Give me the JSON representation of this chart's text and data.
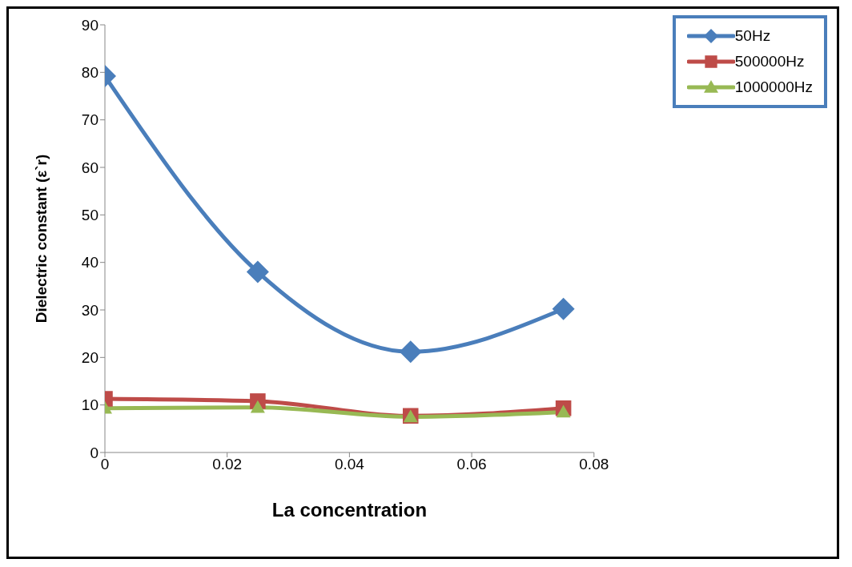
{
  "chart_data": {
    "type": "line",
    "xlabel": "La concentration",
    "ylabel": "Dielectric constant (ε`r)",
    "x": [
      0,
      0.025,
      0.05,
      0.075
    ],
    "series": [
      {
        "name": "50Hz",
        "color": "#4a7ebb",
        "marker": "diamond",
        "values": [
          79.2,
          38,
          21.2,
          30.2
        ]
      },
      {
        "name": "500000Hz",
        "color": "#be4b48",
        "marker": "square",
        "values": [
          11.3,
          10.8,
          7.7,
          9.3
        ]
      },
      {
        "name": "1000000Hz",
        "color": "#98b954",
        "marker": "triangle",
        "values": [
          9.3,
          9.5,
          7.5,
          8.5
        ]
      }
    ],
    "xlim": [
      0,
      0.08
    ],
    "xticks": [
      0,
      0.02,
      0.04,
      0.06,
      0.08
    ],
    "ylim": [
      0,
      90
    ],
    "yticks": [
      0,
      10,
      20,
      30,
      40,
      50,
      60,
      70,
      80,
      90
    ],
    "grid": false,
    "legend": "top right",
    "line_style": "solid"
  }
}
